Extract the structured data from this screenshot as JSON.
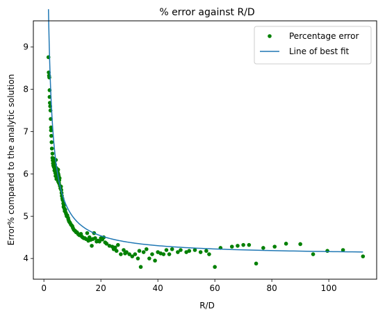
{
  "chart_data": {
    "type": "scatter",
    "title": "% error against R/D",
    "xlabel": "R/D",
    "ylabel": "Error% compared to the analytic solution",
    "xlim": [
      -3.7,
      116.8
    ],
    "ylim": [
      3.51,
      9.62
    ],
    "xticks": [
      0,
      20,
      40,
      60,
      80,
      100
    ],
    "yticks": [
      4,
      5,
      6,
      7,
      8,
      9
    ],
    "grid": false,
    "legend_position": "upper right",
    "series": [
      {
        "name": "Percentage error",
        "kind": "scatter",
        "color": "#008000",
        "x": [
          1.6,
          1.7,
          1.8,
          1.9,
          2.0,
          2.0,
          2.1,
          2.2,
          2.3,
          2.4,
          2.5,
          2.5,
          2.6,
          2.7,
          2.8,
          3.0,
          3.0,
          3.1,
          3.2,
          3.3,
          3.4,
          3.5,
          3.5,
          3.6,
          3.7,
          3.8,
          3.9,
          4.0,
          4.1,
          4.2,
          4.2,
          4.3,
          4.4,
          4.5,
          4.6,
          4.7,
          4.8,
          4.9,
          5.0,
          5.0,
          5.1,
          5.2,
          5.3,
          5.4,
          5.5,
          5.6,
          5.8,
          6.0,
          6.1,
          6.2,
          6.3,
          6.5,
          6.6,
          6.8,
          6.9,
          7.0,
          7.2,
          7.3,
          7.5,
          7.7,
          7.8,
          8.0,
          8.2,
          8.5,
          8.6,
          8.8,
          9.0,
          9.2,
          9.5,
          9.8,
          10.0,
          10.2,
          10.5,
          10.8,
          11.0,
          11.3,
          11.6,
          12.0,
          12.3,
          12.5,
          13.0,
          13.3,
          13.6,
          14.0,
          14.4,
          14.8,
          15.2,
          15.6,
          16.0,
          16.4,
          16.8,
          17.2,
          17.6,
          18.0,
          18.5,
          19.0,
          19.5,
          20.0,
          20.5,
          21.0,
          21.5,
          22.0,
          23.0,
          24.0,
          24.5,
          25.0,
          25.5,
          26.0,
          27.0,
          28.0,
          28.5,
          29.0,
          30.0,
          31.0,
          32.0,
          33.0,
          33.5,
          34.0,
          35.0,
          36.0,
          37.0,
          38.0,
          39.0,
          40.0,
          41.0,
          42.0,
          43.0,
          44.0,
          45.0,
          47.0,
          48.0,
          50.0,
          51.0,
          53.0,
          55.0,
          57.0,
          58.0,
          60.0,
          62.0,
          66.0,
          68.0,
          70.0,
          72.0,
          74.5,
          77.0,
          81.0,
          85.0,
          90.0,
          94.5,
          99.5,
          105.0,
          112.0
        ],
        "y": [
          8.76,
          8.4,
          8.32,
          8.28,
          7.98,
          7.82,
          7.68,
          7.6,
          7.5,
          7.3,
          7.1,
          7.03,
          6.9,
          6.75,
          6.6,
          6.48,
          6.38,
          6.32,
          6.25,
          6.2,
          6.3,
          6.36,
          6.16,
          6.28,
          6.08,
          6.1,
          6.22,
          6.02,
          5.95,
          6.15,
          6.33,
          6.05,
          5.88,
          6.08,
          6.12,
          5.92,
          5.98,
          6.03,
          5.82,
          6.1,
          5.99,
          5.95,
          5.78,
          5.85,
          5.9,
          5.72,
          5.66,
          5.7,
          5.62,
          5.55,
          5.48,
          5.42,
          5.38,
          5.3,
          5.22,
          5.25,
          5.18,
          5.12,
          5.15,
          5.08,
          5.05,
          5.0,
          5.02,
          4.96,
          4.92,
          4.88,
          4.86,
          4.84,
          4.8,
          4.78,
          4.76,
          4.72,
          4.68,
          4.66,
          4.65,
          4.62,
          4.62,
          4.58,
          4.56,
          4.55,
          4.58,
          4.52,
          4.5,
          4.48,
          4.48,
          4.46,
          4.6,
          4.42,
          4.5,
          4.44,
          4.3,
          4.46,
          4.6,
          4.48,
          4.4,
          4.42,
          4.4,
          4.48,
          4.45,
          4.5,
          4.38,
          4.35,
          4.3,
          4.28,
          4.22,
          4.26,
          4.18,
          4.32,
          4.1,
          4.2,
          4.12,
          4.15,
          4.1,
          4.05,
          4.1,
          4.0,
          4.18,
          3.8,
          4.15,
          4.22,
          4.0,
          4.1,
          3.95,
          4.15,
          4.12,
          4.1,
          4.2,
          4.1,
          4.22,
          4.15,
          4.2,
          4.15,
          4.18,
          4.2,
          4.15,
          4.18,
          4.1,
          3.8,
          4.25,
          4.28,
          4.3,
          4.32,
          4.32,
          3.88,
          4.25,
          4.28,
          4.35,
          4.34,
          4.1,
          4.18,
          4.2,
          4.05
        ]
      },
      {
        "name": "Line of best fit",
        "kind": "line",
        "color": "#1f77b4",
        "model": "y = 4.07 + 9.32 / x",
        "x_start": 1.6,
        "x_end": 112.0
      }
    ]
  }
}
